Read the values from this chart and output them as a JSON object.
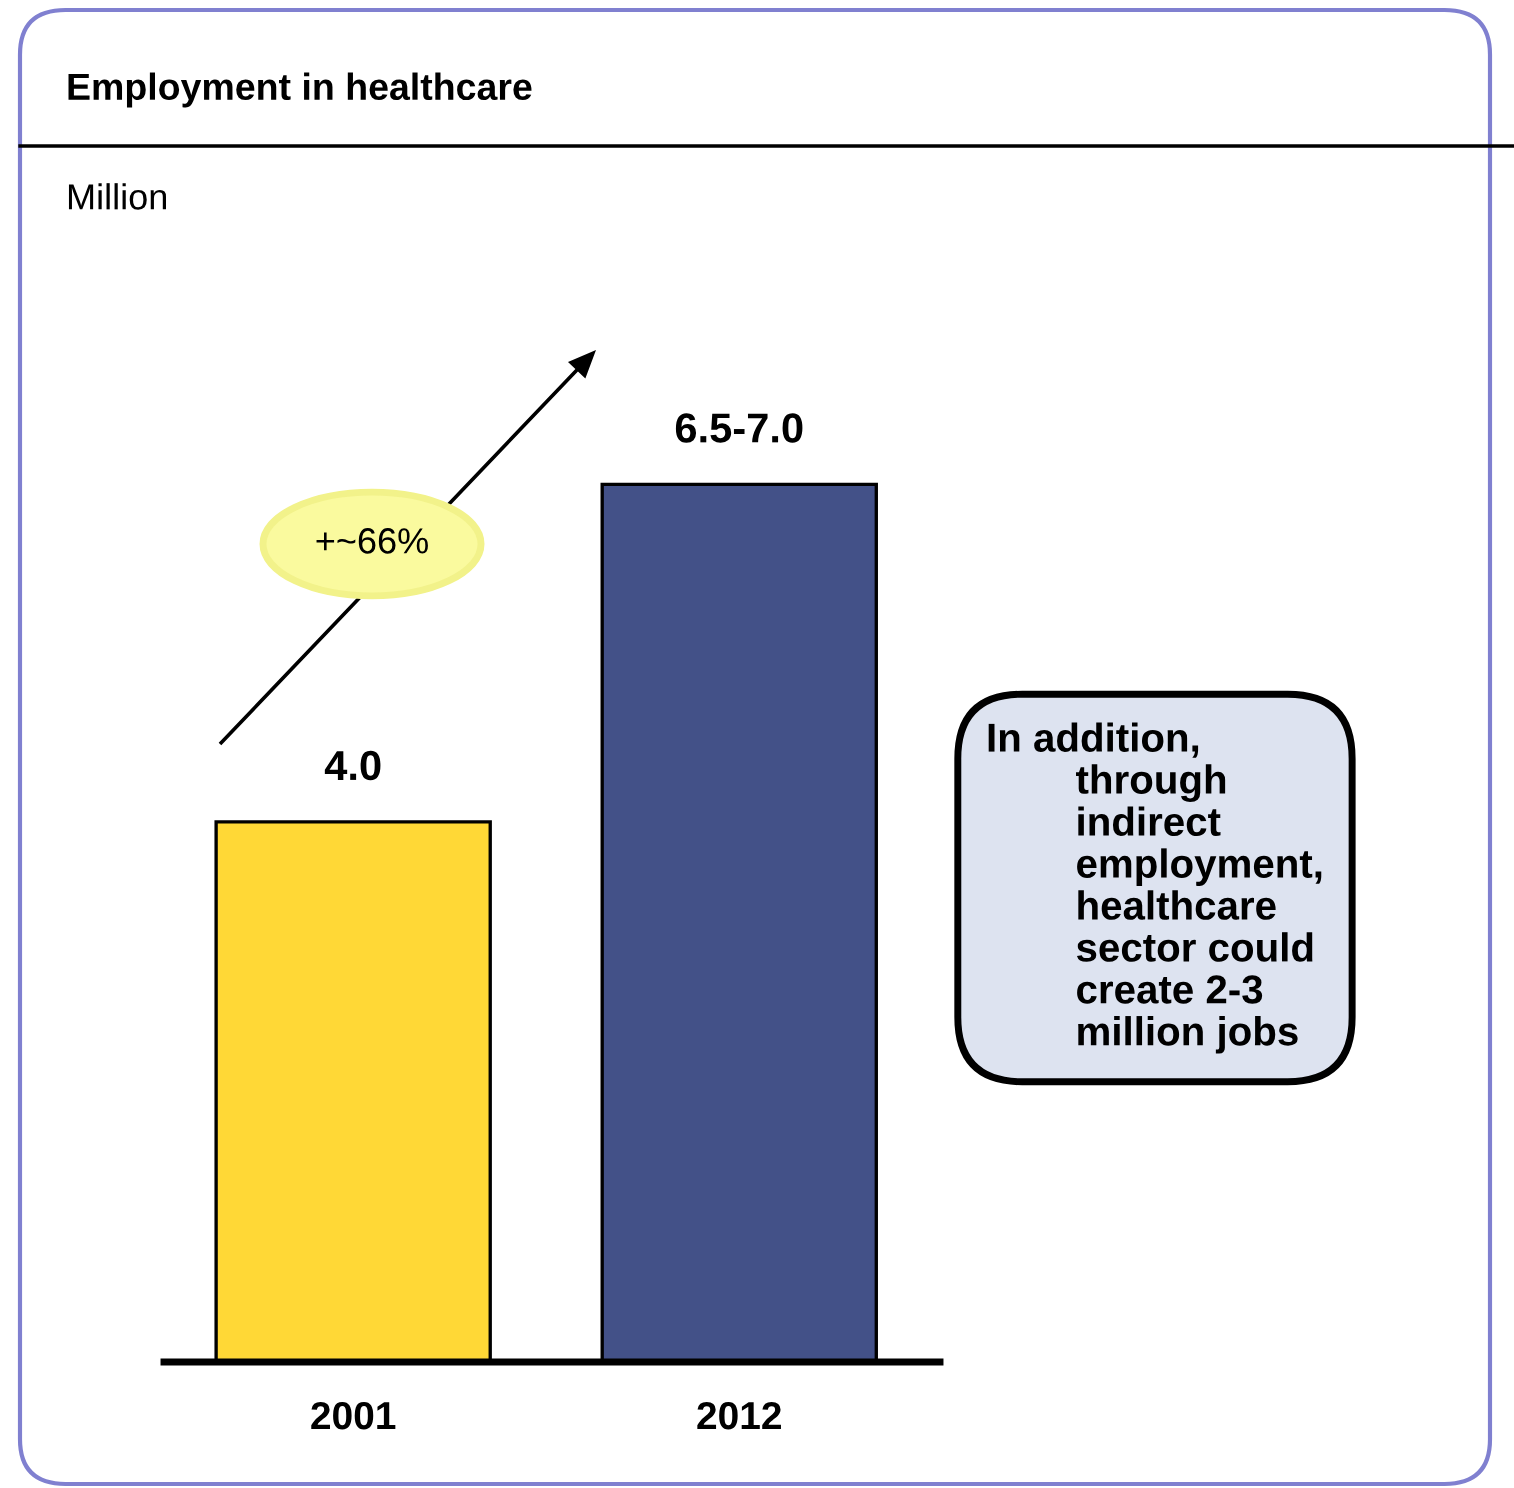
{
  "chart_data": {
    "type": "bar",
    "title": "Employment in healthcare",
    "subtitle": "Million",
    "categories": [
      "2001",
      "2012"
    ],
    "values": [
      4.0,
      6.5
    ],
    "colors": [
      "#ffd836",
      "#435188"
    ],
    "value_labels": [
      "4.0",
      "6.5-7.0"
    ],
    "annotations": [
      "+~66%",
      "In addition,\nthrough\nindirect\nemployment,\nhealthcare\nsector could\ncreate 2-3\nmillion jobs"
    ],
    "grid": false,
    "legend": false
  }
}
